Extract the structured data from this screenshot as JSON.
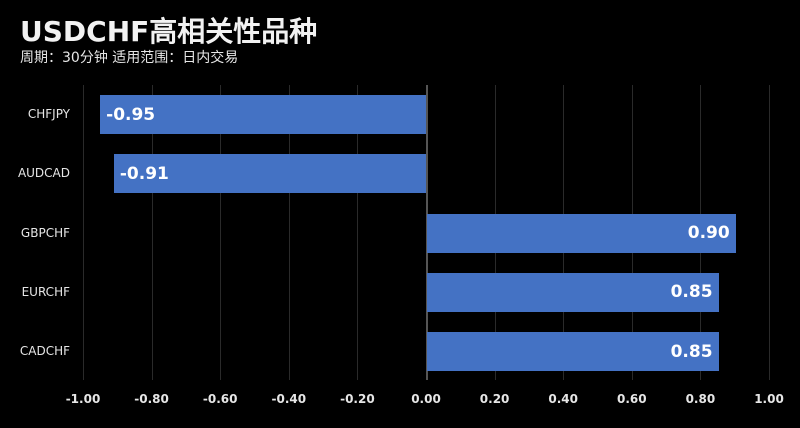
{
  "header": {
    "title": "USDCHF高相关性品种",
    "subtitle": "周期：30分钟  适用范围：日内交易"
  },
  "colors": {
    "bar": "#4472c4",
    "background": "#000000",
    "grid": "#2a2a2a"
  },
  "chart_data": {
    "type": "bar",
    "orientation": "horizontal",
    "title": "USDCHF高相关性品种",
    "subtitle": "周期：30分钟  适用范围：日内交易",
    "categories": [
      "CHFJPY",
      "AUDCAD",
      "GBPCHF",
      "EURCHF",
      "CADCHF"
    ],
    "values": [
      -0.95,
      -0.91,
      0.9,
      0.85,
      0.85
    ],
    "value_labels": [
      "-0.95",
      "-0.91",
      "0.90",
      "0.85",
      "0.85"
    ],
    "xlabel": "",
    "ylabel": "",
    "xlim": [
      -1.0,
      1.0
    ],
    "xticks": [
      "-1.00",
      "-0.80",
      "-0.60",
      "-0.40",
      "-0.20",
      "0.00",
      "0.20",
      "0.40",
      "0.60",
      "0.80",
      "1.00"
    ],
    "grid": true,
    "legend": "none"
  }
}
